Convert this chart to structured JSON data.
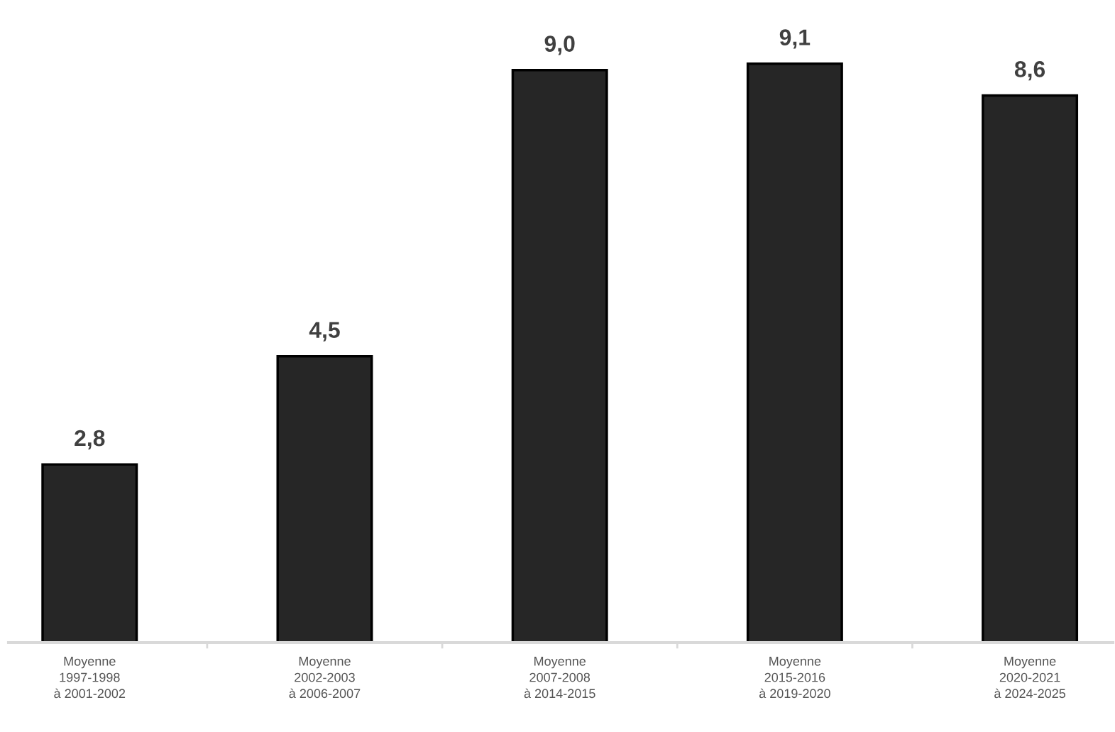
{
  "chart_data": {
    "type": "bar",
    "categories": [
      "Moyenne\n1997-1998\nà 2001-2002",
      "Moyenne\n2002-2003\nà 2006-2007",
      "Moyenne\n2007-2008\nà 2014-2015",
      "Moyenne\n2015-2016\nà 2019-2020",
      "Moyenne\n2020-2021\nà 2024-2025"
    ],
    "values": [
      2.8,
      4.5,
      9.0,
      9.1,
      8.6
    ],
    "value_labels": [
      "2,8",
      "4,5",
      "9,0",
      "9,1",
      "8,6"
    ],
    "color": "#262626",
    "tick_labels": "x",
    "grid": false,
    "legend": false
  }
}
